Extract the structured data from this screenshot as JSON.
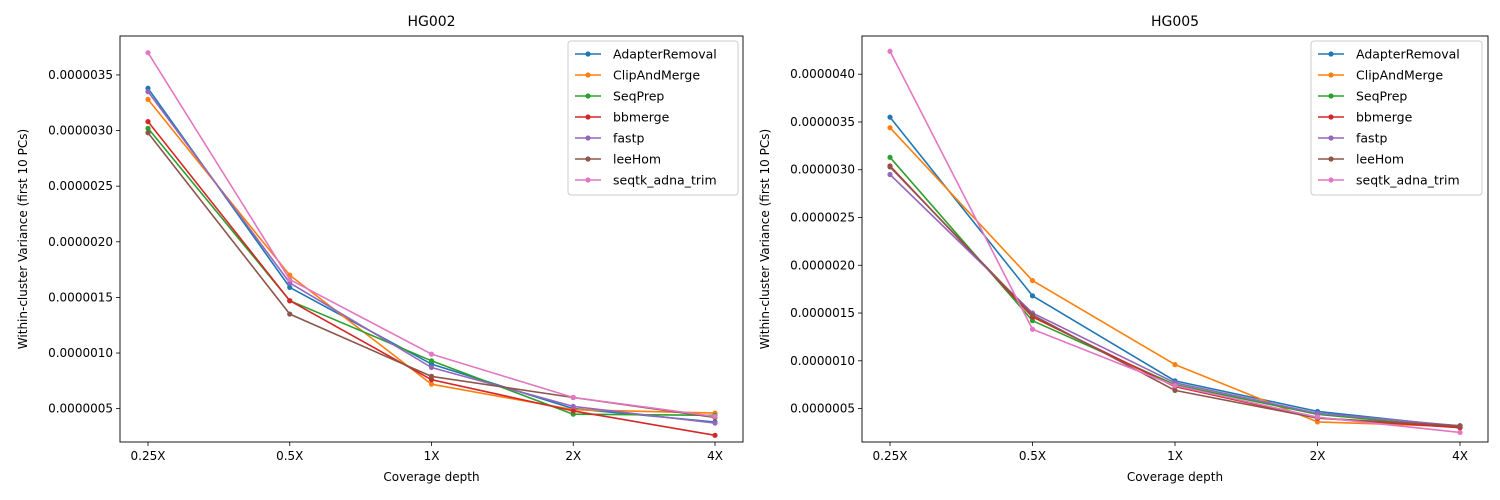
{
  "chart_data": [
    {
      "type": "line",
      "title": "HG002",
      "xlabel": "Coverage depth",
      "ylabel": "Within-cluster Variance (first 10 PCs)",
      "categories": [
        "0.25X",
        "0.5X",
        "1X",
        "2X",
        "4X"
      ],
      "ylim": [
        2e-07,
        3.85e-06
      ],
      "yticks": [
        5e-07,
        1e-06,
        1.5e-06,
        2e-06,
        2.5e-06,
        3e-06,
        3.5e-06
      ],
      "ytick_labels": [
        "0.0000005",
        "0.0000010",
        "0.0000015",
        "0.0000020",
        "0.0000025",
        "0.0000030",
        "0.0000035"
      ],
      "grid": false,
      "legend_position": "top-right",
      "series": [
        {
          "name": "AdapterRemoval",
          "color": "#1f77b4",
          "values": [
            3.38e-06,
            1.59e-06,
            9e-07,
            5e-07,
            3.8e-07
          ]
        },
        {
          "name": "ClipAndMerge",
          "color": "#ff7f0e",
          "values": [
            3.28e-06,
            1.7e-06,
            7.2e-07,
            4.9e-07,
            4.6e-07
          ]
        },
        {
          "name": "SeqPrep",
          "color": "#2ca02c",
          "values": [
            3.02e-06,
            1.47e-06,
            9.3e-07,
            4.5e-07,
            4.4e-07
          ]
        },
        {
          "name": "bbmerge",
          "color": "#d62728",
          "values": [
            3.08e-06,
            1.47e-06,
            7.6e-07,
            4.8e-07,
            2.6e-07
          ]
        },
        {
          "name": "fastp",
          "color": "#9467bd",
          "values": [
            3.35e-06,
            1.63e-06,
            8.7e-07,
            5.2e-07,
            3.7e-07
          ]
        },
        {
          "name": "leeHom",
          "color": "#8c564b",
          "values": [
            2.98e-06,
            1.35e-06,
            7.9e-07,
            6e-07,
            4.2e-07
          ]
        },
        {
          "name": "seqtk_adna_trim",
          "color": "#e377c2",
          "values": [
            3.7e-06,
            1.66e-06,
            9.9e-07,
            6e-07,
            4.3e-07
          ]
        }
      ]
    },
    {
      "type": "line",
      "title": "HG005",
      "xlabel": "Coverage depth",
      "ylabel": "Within-cluster Variance (first 10 PCs)",
      "categories": [
        "0.25X",
        "0.5X",
        "1X",
        "2X",
        "4X"
      ],
      "ylim": [
        1.5e-07,
        4.4e-06
      ],
      "yticks": [
        5e-07,
        1e-06,
        1.5e-06,
        2e-06,
        2.5e-06,
        3e-06,
        3.5e-06,
        4e-06
      ],
      "ytick_labels": [
        "0.0000005",
        "0.0000010",
        "0.0000015",
        "0.0000020",
        "0.0000025",
        "0.0000030",
        "0.0000035",
        "0.0000040"
      ],
      "grid": false,
      "legend_position": "top-right",
      "series": [
        {
          "name": "AdapterRemoval",
          "color": "#1f77b4",
          "values": [
            3.55e-06,
            1.68e-06,
            7.9e-07,
            4.7e-07,
            3.1e-07
          ]
        },
        {
          "name": "ClipAndMerge",
          "color": "#ff7f0e",
          "values": [
            3.44e-06,
            1.84e-06,
            9.6e-07,
            3.6e-07,
            3.1e-07
          ]
        },
        {
          "name": "SeqPrep",
          "color": "#2ca02c",
          "values": [
            3.13e-06,
            1.42e-06,
            7.5e-07,
            4.4e-07,
            3e-07
          ]
        },
        {
          "name": "bbmerge",
          "color": "#d62728",
          "values": [
            3.04e-06,
            1.46e-06,
            7.3e-07,
            4e-07,
            3e-07
          ]
        },
        {
          "name": "fastp",
          "color": "#9467bd",
          "values": [
            2.95e-06,
            1.5e-06,
            7.7e-07,
            4.5e-07,
            3.2e-07
          ]
        },
        {
          "name": "leeHom",
          "color": "#8c564b",
          "values": [
            3.03e-06,
            1.48e-06,
            6.9e-07,
            4e-07,
            3.2e-07
          ]
        },
        {
          "name": "seqtk_adna_trim",
          "color": "#e377c2",
          "values": [
            4.24e-06,
            1.33e-06,
            7.4e-07,
            4.1e-07,
            2.5e-07
          ]
        }
      ]
    }
  ]
}
